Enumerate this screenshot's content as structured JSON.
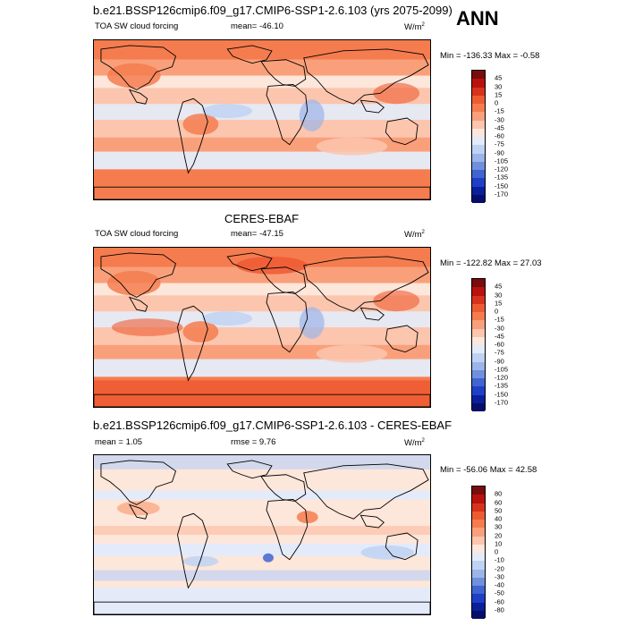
{
  "top": {
    "title": "b.e21.BSSP126cmip6.f09_g17.CMIP6-SSP1-2.6.103 (yrs 2075-2099)",
    "season": "ANN",
    "variable": "TOA SW cloud forcing",
    "mean": "mean= -46.10",
    "units_base": "W/m",
    "units_exp": "2",
    "minmax": "Min = -136.33  Max =  -0.58",
    "levels": [
      "45",
      "30",
      "15",
      "0",
      "-15",
      "-30",
      "-45",
      "-60",
      "-75",
      "-90",
      "-105",
      "-120",
      "-135",
      "-150",
      "-170"
    ]
  },
  "middle": {
    "title": "CERES-EBAF",
    "variable": "TOA SW cloud forcing",
    "mean": "mean= -47.15",
    "units_base": "W/m",
    "units_exp": "2",
    "minmax": "Min = -122.82  Max =  27.03",
    "levels": [
      "45",
      "30",
      "15",
      "0",
      "-15",
      "-30",
      "-45",
      "-60",
      "-75",
      "-90",
      "-105",
      "-120",
      "-135",
      "-150",
      "-170"
    ]
  },
  "bottom": {
    "title": "b.e21.BSSP126cmip6.f09_g17.CMIP6-SSP1-2.6.103 - CERES-EBAF",
    "mean": "mean =   1.05",
    "rmse": "rmse =   9.76",
    "units_base": "W/m",
    "units_exp": "2",
    "minmax": "Min = -56.06  Max =  42.58",
    "levels": [
      "80",
      "60",
      "50",
      "40",
      "30",
      "20",
      "10",
      "0",
      "-10",
      "-20",
      "-30",
      "-40",
      "-50",
      "-60",
      "-80"
    ]
  },
  "colors": {
    "scale": [
      "#7a0c0c",
      "#b8120f",
      "#d8321c",
      "#ee5b32",
      "#f57c4f",
      "#f9a07b",
      "#fcc5ad",
      "#fde6da",
      "#e3ebfa",
      "#c0d2f3",
      "#9bb5ea",
      "#6f90dc",
      "#4064d1",
      "#1f3fc6",
      "#0b1f9a",
      "#050f6b"
    ],
    "coast": "#000000"
  }
}
